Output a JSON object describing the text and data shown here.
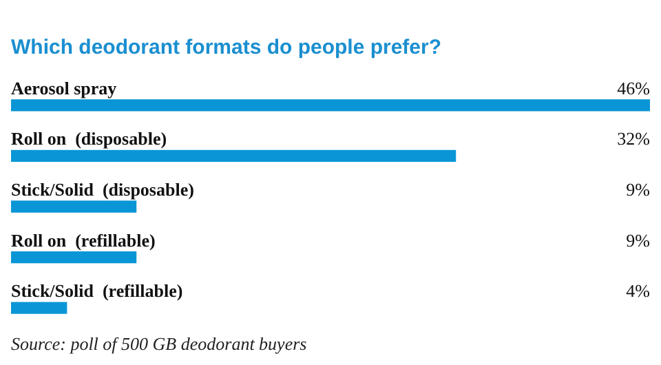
{
  "chart_data": {
    "type": "bar",
    "orientation": "horizontal",
    "title": "Which deodorant formats do people prefer?",
    "categories": [
      "Aerosol spray",
      "Roll on  (disposable)",
      "Stick/Solid  (disposable)",
      "Roll on  (refillable)",
      "Stick/Solid  (refillable)"
    ],
    "values": [
      46,
      32,
      9,
      9,
      4
    ],
    "value_labels": [
      "46%",
      "32%",
      "9%",
      "9%",
      "4%"
    ],
    "color": "#0a96d6",
    "legend": false,
    "annotations": [
      "Source: poll of 500 GB deodorant buyers"
    ]
  }
}
